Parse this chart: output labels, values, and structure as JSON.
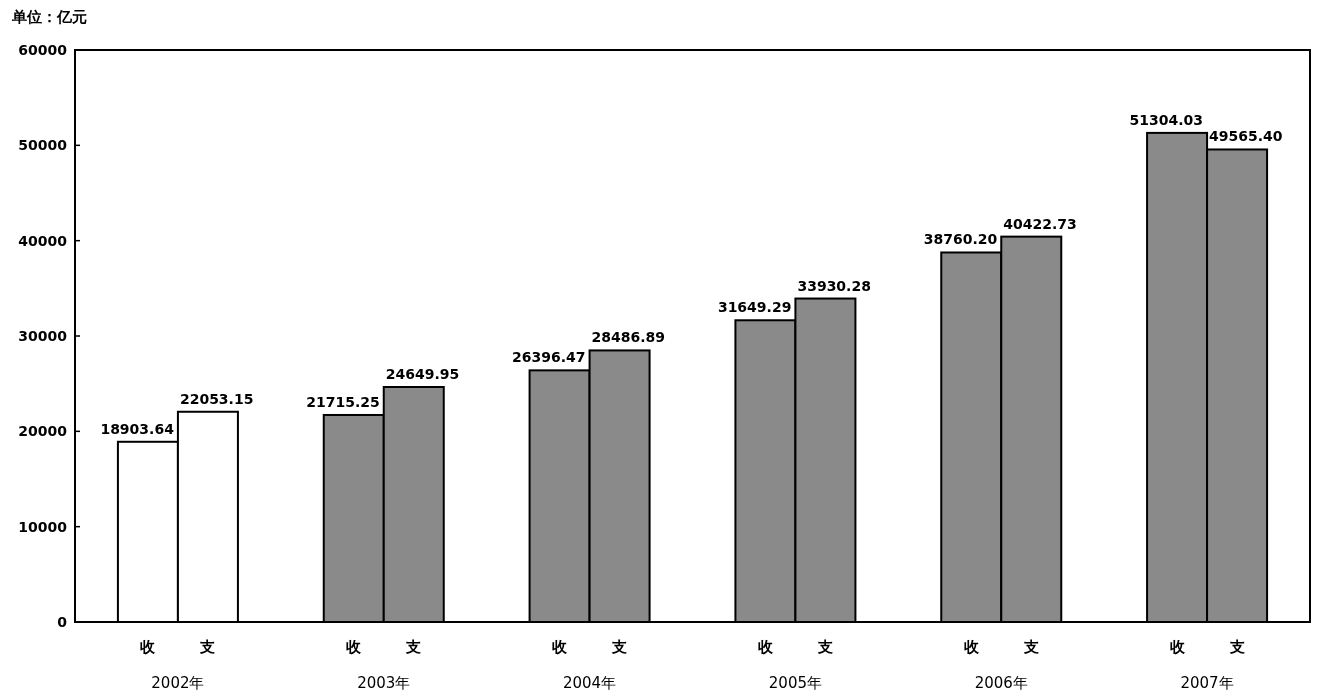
{
  "chart_data": {
    "type": "bar",
    "ylabel": "单位：亿元",
    "categories": [
      "2002年",
      "2003年",
      "2004年",
      "2005年",
      "2006年",
      "2007年"
    ],
    "series": [
      {
        "name": "收",
        "colors": [
          "#ffffff",
          "#8a8a8a",
          "#8a8a8a",
          "#8a8a8a",
          "#8a8a8a",
          "#8a8a8a"
        ],
        "values": [
          18903.64,
          21715.25,
          26396.47,
          31649.29,
          38760.2,
          51304.03
        ],
        "value_labels": [
          "18903.64",
          "21715.25",
          "26396.47",
          "31649.29",
          "38760.20",
          "51304.03"
        ]
      },
      {
        "name": "支",
        "colors": [
          "#ffffff",
          "#8a8a8a",
          "#8a8a8a",
          "#8a8a8a",
          "#8a8a8a",
          "#8a8a8a"
        ],
        "values": [
          22053.15,
          24649.95,
          28486.89,
          33930.28,
          40422.73,
          49565.4
        ],
        "value_labels": [
          "22053.15",
          "24649.95",
          "28486.89",
          "33930.28",
          "40422.73",
          "49565.40"
        ]
      }
    ],
    "ylim": [
      0,
      60000
    ],
    "yticks": [
      0,
      10000,
      20000,
      30000,
      40000,
      50000,
      60000
    ],
    "grid": false,
    "legend": false
  }
}
